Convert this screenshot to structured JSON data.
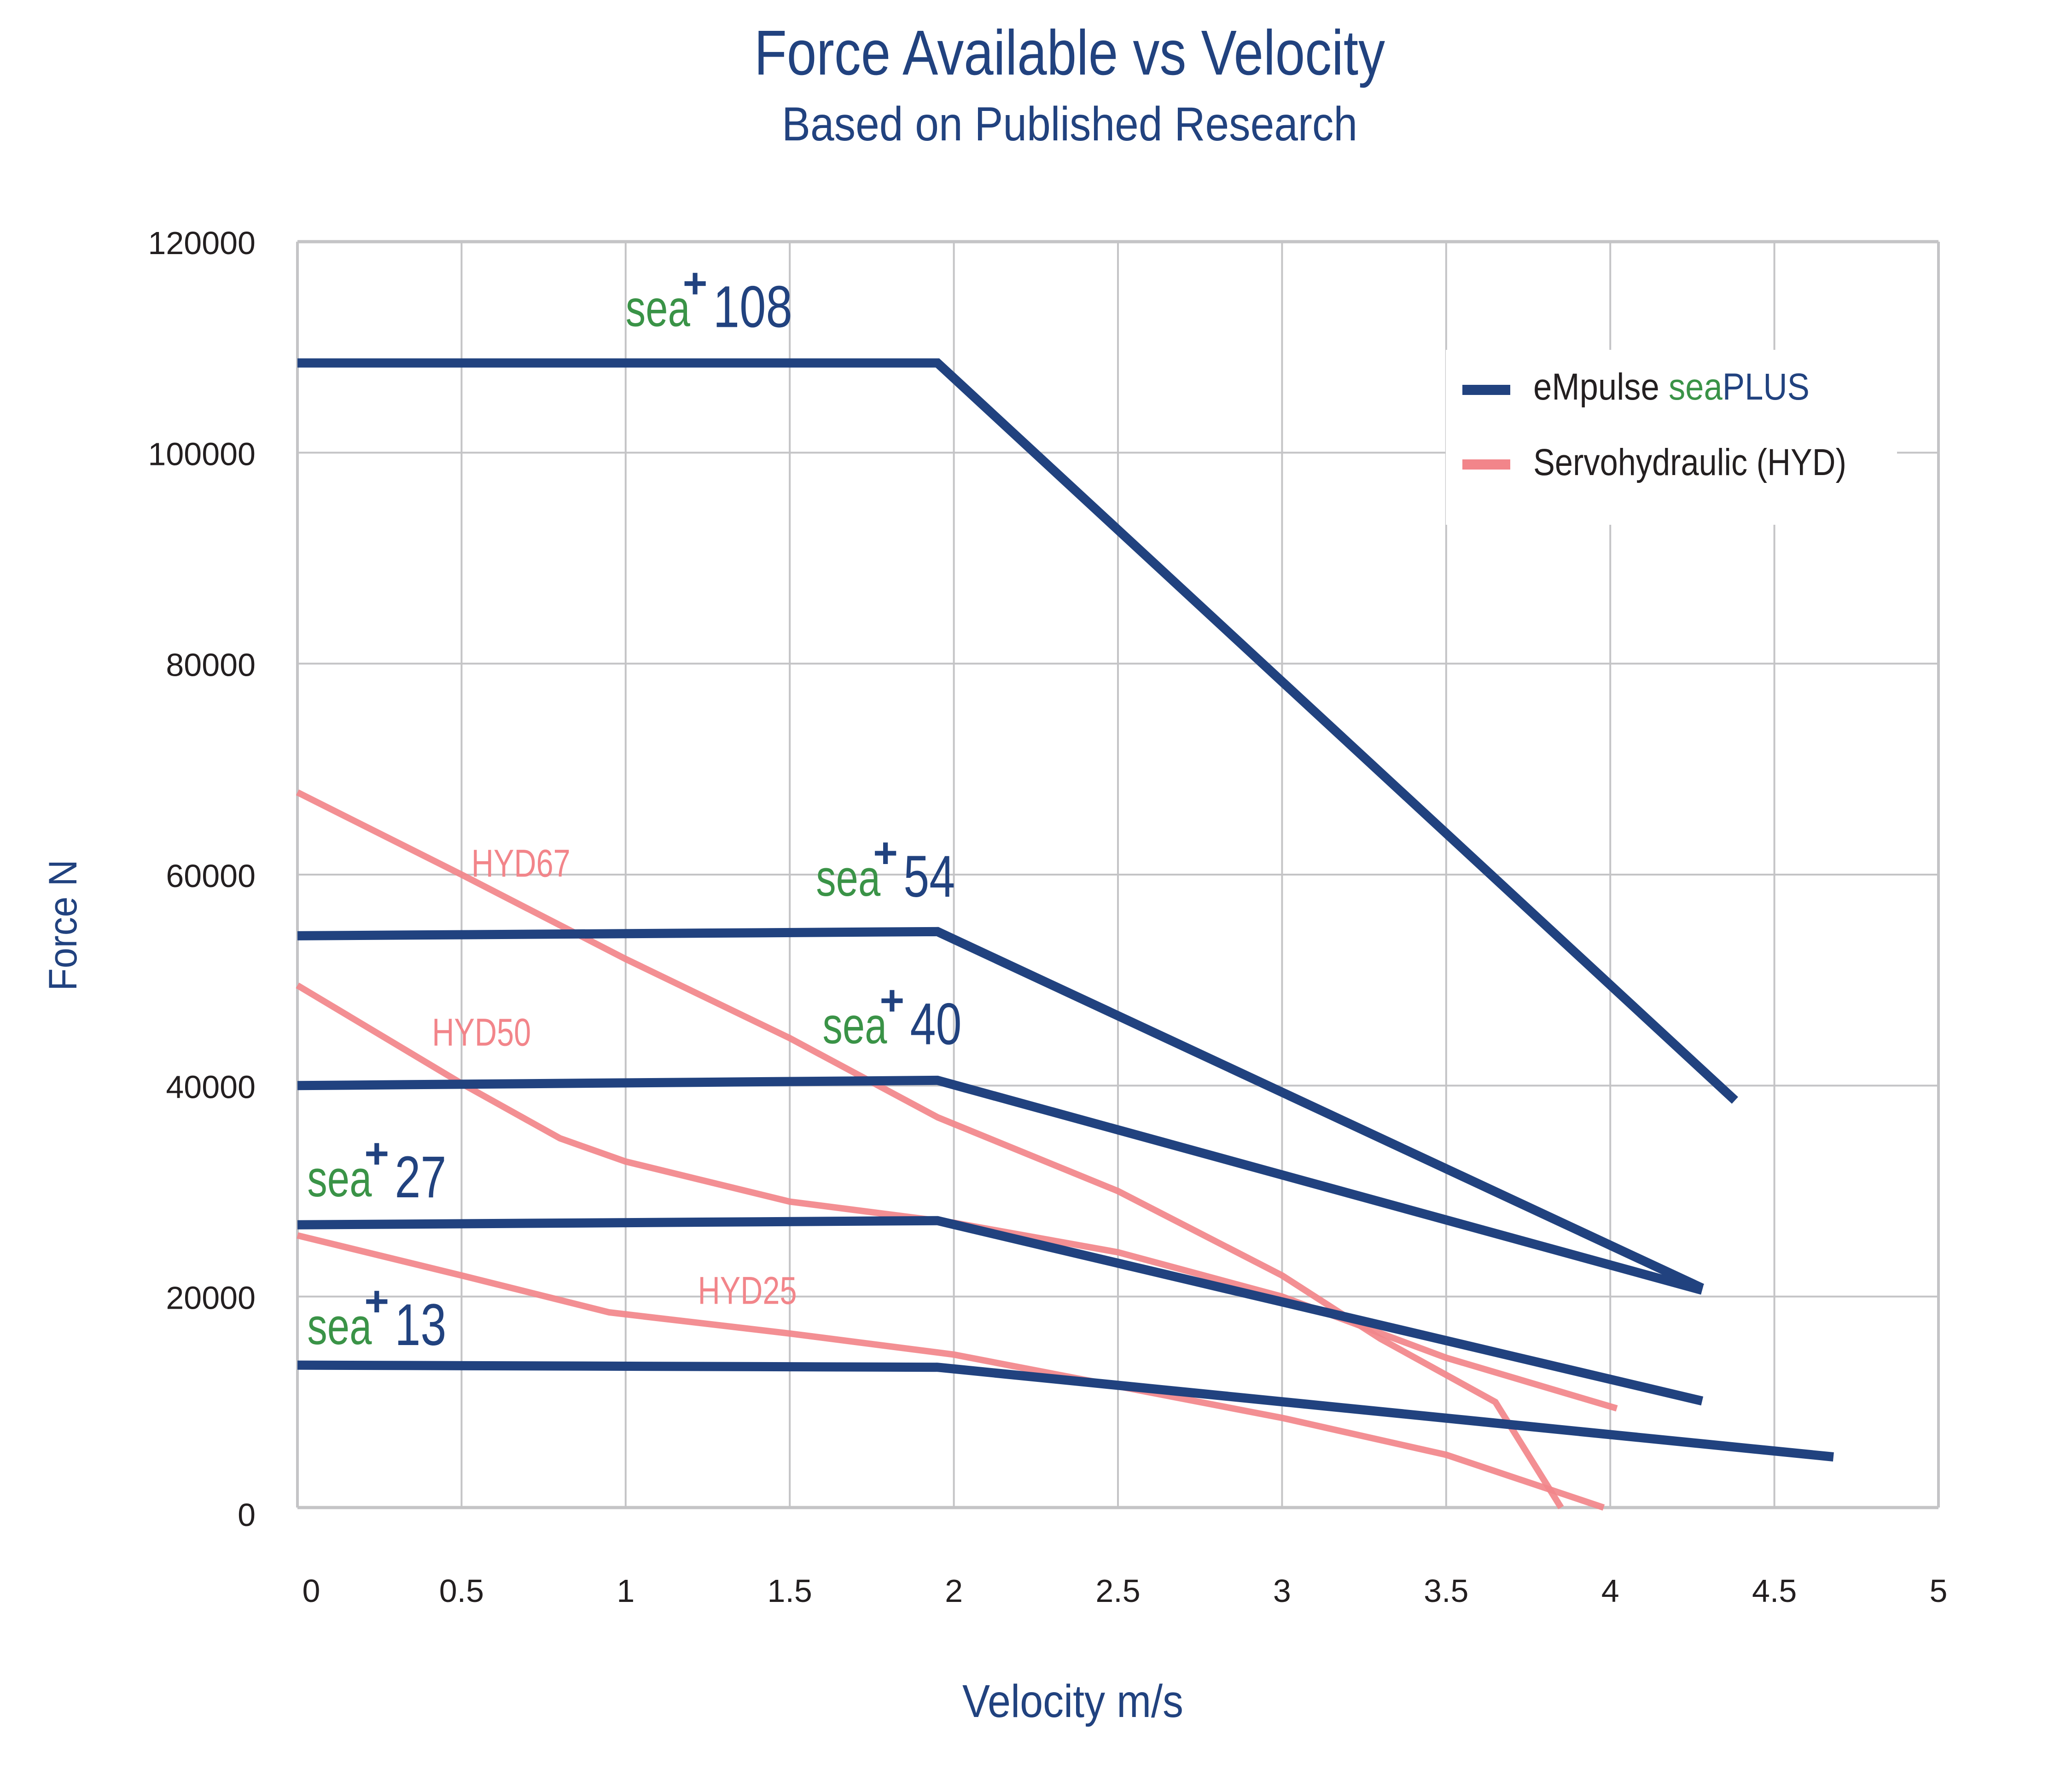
{
  "chart_data": {
    "type": "line",
    "title": "Force Available vs Velocity",
    "subtitle": "Based on Published Research",
    "xlabel": "Velocity m/s",
    "ylabel": "Force N",
    "xlim": [
      0,
      5
    ],
    "ylim": [
      0,
      120000
    ],
    "x_ticks": [
      "0",
      "0.5",
      "1",
      "1.5",
      "2",
      "2.5",
      "3",
      "3.5",
      "4",
      "4.5",
      "5"
    ],
    "x_tick_values": [
      0,
      0.5,
      1,
      1.5,
      2,
      2.5,
      3,
      3.5,
      4,
      4.5,
      5
    ],
    "y_ticks": [
      "0",
      "20000",
      "40000",
      "60000",
      "80000",
      "100000",
      "120000"
    ],
    "y_tick_values": [
      0,
      20000,
      40000,
      60000,
      80000,
      100000,
      120000
    ],
    "grid": true,
    "legend_position": "top-right",
    "legend": [
      {
        "group": "seaplus",
        "prefix": "eMpulse ",
        "green": "sea",
        "blue": "PLUS",
        "color": "#21427f"
      },
      {
        "group": "hyd",
        "text": "Servohydraulic (HYD)",
        "color": "#f2858a"
      }
    ],
    "colors": {
      "blue": "#21427f",
      "pink": "#f2858a",
      "green": "#3a9347",
      "text": "#231f20",
      "grid": "#c4c4c6"
    },
    "series": [
      {
        "name": "sea+ 108",
        "group": "seaplus",
        "label_prefix": "sea",
        "label_sup": "+",
        "label_num": "108",
        "label_at": [
          1.0,
          112000
        ],
        "points": [
          [
            0,
            108500
          ],
          [
            1.95,
            108500
          ],
          [
            4.38,
            38600
          ]
        ]
      },
      {
        "name": "sea+ 54",
        "group": "seaplus",
        "label_prefix": "sea",
        "label_sup": "+",
        "label_num": "54",
        "label_at": [
          1.58,
          58000
        ],
        "points": [
          [
            0,
            54200
          ],
          [
            1.95,
            54600
          ],
          [
            4.28,
            20800
          ]
        ]
      },
      {
        "name": "sea+ 40",
        "group": "seaplus",
        "label_prefix": "sea",
        "label_sup": "+",
        "label_num": "40",
        "label_at": [
          1.6,
          44000
        ],
        "points": [
          [
            0,
            40000
          ],
          [
            1.95,
            40500
          ],
          [
            4.28,
            20600
          ]
        ]
      },
      {
        "name": "sea+ 27",
        "group": "seaplus",
        "label_prefix": "sea",
        "label_sup": "+",
        "label_num": "27",
        "label_at": [
          0.03,
          29500
        ],
        "points": [
          [
            0,
            26800
          ],
          [
            1.95,
            27200
          ],
          [
            4.28,
            10100
          ]
        ]
      },
      {
        "name": "sea+ 13",
        "group": "seaplus",
        "label_prefix": "sea",
        "label_sup": "+",
        "label_num": "13",
        "label_at": [
          0.03,
          15500
        ],
        "points": [
          [
            0,
            13500
          ],
          [
            1.95,
            13300
          ],
          [
            4.68,
            4800
          ]
        ]
      },
      {
        "name": "HYD67",
        "group": "hyd",
        "label": "HYD67",
        "label_at": [
          0.53,
          59800
        ],
        "points": [
          [
            0,
            67800
          ],
          [
            0.5,
            60000
          ],
          [
            1.0,
            52000
          ],
          [
            1.5,
            44500
          ],
          [
            1.95,
            37000
          ],
          [
            2.5,
            30000
          ],
          [
            3.0,
            22000
          ],
          [
            3.3,
            16000
          ],
          [
            3.65,
            10000
          ],
          [
            3.85,
            0
          ]
        ]
      },
      {
        "name": "HYD50",
        "group": "hyd",
        "label": "HYD50",
        "label_at": [
          0.41,
          43800
        ],
        "points": [
          [
            0,
            49500
          ],
          [
            0.5,
            40200
          ],
          [
            0.8,
            35000
          ],
          [
            1.0,
            32800
          ],
          [
            1.5,
            29000
          ],
          [
            2.0,
            27000
          ],
          [
            2.5,
            24200
          ],
          [
            3.0,
            20000
          ],
          [
            3.5,
            14200
          ],
          [
            4.02,
            9400
          ]
        ]
      },
      {
        "name": "HYD25",
        "group": "hyd",
        "label": "HYD25",
        "label_at": [
          1.22,
          19300
        ],
        "points": [
          [
            0,
            25800
          ],
          [
            0.5,
            22000
          ],
          [
            0.95,
            18500
          ],
          [
            1.5,
            16500
          ],
          [
            2.0,
            14500
          ],
          [
            2.5,
            11500
          ],
          [
            3.0,
            8500
          ],
          [
            3.5,
            5000
          ],
          [
            3.98,
            0
          ]
        ]
      }
    ]
  }
}
